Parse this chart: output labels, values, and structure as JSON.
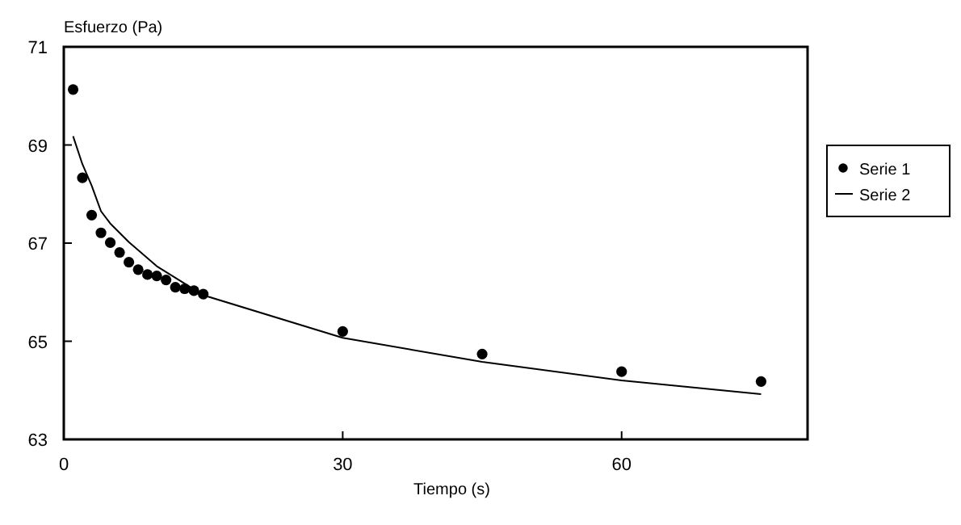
{
  "chart_data": {
    "type": "scatter",
    "xlabel": "Tiempo (s)",
    "ylabel": "Esfuerzo (Pa)",
    "xlim": [
      0,
      80
    ],
    "ylim": [
      63,
      71
    ],
    "xticks": [
      0,
      30,
      60
    ],
    "yticks": [
      63,
      65,
      67,
      69,
      71
    ],
    "legend": "right",
    "grid": false,
    "series": [
      {
        "name": "Serie 1",
        "type": "scatter",
        "marker": "circle",
        "color": "#000000",
        "x": [
          1,
          2,
          3,
          4,
          5,
          6,
          7,
          8,
          9,
          10,
          11,
          12,
          13,
          14,
          15,
          30,
          45,
          60,
          75
        ],
        "values": [
          70.13,
          68.33,
          67.57,
          67.21,
          67.01,
          66.81,
          66.61,
          66.46,
          66.36,
          66.33,
          66.25,
          66.1,
          66.07,
          66.03,
          65.96,
          65.2,
          64.74,
          64.38,
          64.18
        ]
      },
      {
        "name": "Serie 2",
        "type": "line",
        "marker": "none",
        "line_style": "solid",
        "color": "#000000",
        "x": [
          1,
          2,
          3,
          4,
          5,
          7,
          10,
          15,
          30,
          45,
          60,
          75
        ],
        "values": [
          69.18,
          68.61,
          68.17,
          67.65,
          67.4,
          67.02,
          66.53,
          65.94,
          65.07,
          64.58,
          64.2,
          63.92
        ]
      }
    ]
  }
}
